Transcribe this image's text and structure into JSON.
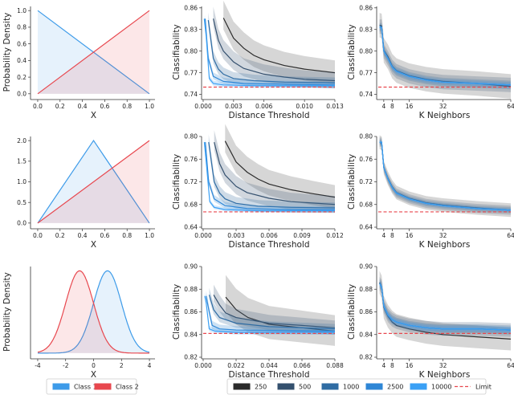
{
  "colors": {
    "class1": "#3d9be9",
    "class2": "#e8474e",
    "limit": "#e8474e",
    "s250": "#2b2b2b",
    "s500": "#34506e",
    "s1000": "#2f6ca3",
    "s2500": "#2e86d6",
    "s10000": "#3aa0f5"
  },
  "legends": {
    "classes": [
      {
        "label": "Class 1",
        "color": "#3d9be9"
      },
      {
        "label": "Class 2",
        "color": "#e8474e"
      }
    ],
    "samples": [
      {
        "label": "250",
        "color": "#2b2b2b"
      },
      {
        "label": "500",
        "color": "#34506e"
      },
      {
        "label": "1000",
        "color": "#2f6ca3"
      },
      {
        "label": "2500",
        "color": "#2e86d6"
      },
      {
        "label": "10000",
        "color": "#3aa0f5"
      },
      {
        "label": "Limit",
        "color": "#e8474e",
        "style": "dashed"
      }
    ]
  },
  "chart_data": [
    {
      "type": "line",
      "row": 1,
      "col": 1,
      "xlabel": "X",
      "ylabel": "Probability Density",
      "xlim": [
        -0.05,
        1.05
      ],
      "ylim": [
        -0.05,
        1.05
      ],
      "xticks": [
        "0.0",
        "0.2",
        "0.4",
        "0.6",
        "0.8",
        "1.0"
      ],
      "yticks": [
        "0.0",
        "0.2",
        "0.4",
        "0.6",
        "0.8",
        "1.0"
      ],
      "fill": true,
      "series": [
        {
          "name": "Class 1",
          "x": [
            0,
            1
          ],
          "y": [
            1,
            0
          ]
        },
        {
          "name": "Class 2",
          "x": [
            0,
            1
          ],
          "y": [
            0,
            1
          ]
        }
      ]
    },
    {
      "type": "line",
      "row": 1,
      "col": 2,
      "xlabel": "Distance Threshold",
      "ylabel": "Classifiability",
      "xlim": [
        0,
        0.013
      ],
      "ylim": [
        0.735,
        0.862
      ],
      "limit": 0.75,
      "xticks": [
        "0.000",
        "0.003",
        "0.006",
        "0.010",
        "0.013"
      ],
      "yticks": [
        "0.74",
        "0.77",
        "0.80",
        "0.83",
        "0.86"
      ],
      "series": [
        {
          "name": "250",
          "ci": 0.016,
          "x": [
            0.002,
            0.003,
            0.004,
            0.005,
            0.006,
            0.008,
            0.01,
            0.013
          ],
          "y": [
            0.846,
            0.818,
            0.804,
            0.794,
            0.788,
            0.78,
            0.775,
            0.77
          ]
        },
        {
          "name": "500",
          "ci": 0.011,
          "x": [
            0.001,
            0.0015,
            0.002,
            0.003,
            0.004,
            0.006,
            0.008,
            0.01,
            0.013
          ],
          "y": [
            0.845,
            0.815,
            0.8,
            0.785,
            0.776,
            0.768,
            0.764,
            0.761,
            0.759
          ]
        },
        {
          "name": "1000",
          "ci": 0.007,
          "x": [
            0.0005,
            0.001,
            0.0015,
            0.002,
            0.003,
            0.005,
            0.008,
            0.013
          ],
          "y": [
            0.843,
            0.79,
            0.775,
            0.768,
            0.762,
            0.759,
            0.757,
            0.756
          ]
        },
        {
          "name": "2500",
          "ci": 0.004,
          "x": [
            0.0002,
            0.0005,
            0.001,
            0.002,
            0.004,
            0.008,
            0.013
          ],
          "y": [
            0.845,
            0.79,
            0.765,
            0.758,
            0.755,
            0.754,
            0.753
          ]
        },
        {
          "name": "10000",
          "ci": 0.003,
          "x": [
            0.0001,
            0.0003,
            0.0006,
            0.001,
            0.002,
            0.005,
            0.013
          ],
          "y": [
            0.845,
            0.82,
            0.762,
            0.755,
            0.753,
            0.752,
            0.752
          ]
        }
      ]
    },
    {
      "type": "line",
      "row": 1,
      "col": 3,
      "xlabel": "K Neighbors",
      "ylabel": "Classifiability",
      "xlim": [
        1.4,
        64
      ],
      "ylim": [
        0.735,
        0.862
      ],
      "limit": 0.75,
      "xticks": [
        "4",
        "8",
        "16",
        "32",
        "64"
      ],
      "yticks": [
        "0.74",
        "0.77",
        "0.80",
        "0.83",
        "0.86"
      ],
      "series": [
        {
          "name": "250",
          "ci": 0.017,
          "x": [
            2,
            3,
            4,
            6,
            8,
            10,
            16,
            24,
            32,
            48,
            64
          ],
          "y": [
            0.836,
            0.835,
            0.801,
            0.792,
            0.779,
            0.773,
            0.766,
            0.761,
            0.758,
            0.755,
            0.751
          ]
        },
        {
          "name": "500",
          "ci": 0.01,
          "x": [
            2,
            3,
            4,
            6,
            8,
            10,
            16,
            24,
            32,
            48,
            64
          ],
          "y": [
            0.834,
            0.834,
            0.8,
            0.79,
            0.778,
            0.772,
            0.765,
            0.76,
            0.757,
            0.755,
            0.753
          ]
        },
        {
          "name": "1000",
          "ci": 0.006,
          "x": [
            2,
            3,
            4,
            6,
            8,
            10,
            16,
            24,
            32,
            48,
            64
          ],
          "y": [
            0.833,
            0.833,
            0.8,
            0.79,
            0.778,
            0.772,
            0.765,
            0.76,
            0.757,
            0.755,
            0.753
          ]
        },
        {
          "name": "2500",
          "ci": 0.004,
          "x": [
            2,
            3,
            4,
            6,
            8,
            10,
            16,
            24,
            32,
            48,
            64
          ],
          "y": [
            0.833,
            0.833,
            0.8,
            0.79,
            0.778,
            0.772,
            0.765,
            0.76,
            0.757,
            0.755,
            0.753
          ]
        },
        {
          "name": "10000",
          "ci": 0.002,
          "x": [
            2,
            3,
            4,
            6,
            8,
            10,
            16,
            24,
            32,
            48,
            64
          ],
          "y": [
            0.833,
            0.833,
            0.8,
            0.79,
            0.778,
            0.772,
            0.765,
            0.76,
            0.757,
            0.755,
            0.753
          ]
        }
      ]
    },
    {
      "type": "line",
      "row": 2,
      "col": 1,
      "xlabel": "X",
      "ylabel": "",
      "xlim": [
        -0.05,
        1.05
      ],
      "ylim": [
        -0.1,
        2.1
      ],
      "xticks": [
        "0.0",
        "0.2",
        "0.4",
        "0.6",
        "0.8",
        "1.0"
      ],
      "yticks": [
        "0.0",
        "0.5",
        "1.0",
        "1.5",
        "2.0"
      ],
      "fill": true,
      "series": [
        {
          "name": "Class 1",
          "x": [
            0,
            0.5,
            1
          ],
          "y": [
            0,
            2,
            0
          ]
        },
        {
          "name": "Class 2",
          "x": [
            0,
            1
          ],
          "y": [
            0,
            2
          ]
        }
      ]
    },
    {
      "type": "line",
      "row": 2,
      "col": 2,
      "xlabel": "Distance Threshold",
      "ylabel": "Classifiability",
      "xlim": [
        0,
        0.012
      ],
      "ylim": [
        0.64,
        0.8
      ],
      "limit": 0.667,
      "xticks": [
        "0.000",
        "0.003",
        "0.006",
        "0.009",
        "0.012"
      ],
      "yticks": [
        "0.64",
        "0.68",
        "0.72",
        "0.76",
        "0.80"
      ],
      "series": [
        {
          "name": "250",
          "ci": 0.02,
          "x": [
            0.002,
            0.003,
            0.004,
            0.005,
            0.006,
            0.008,
            0.01,
            0.012
          ],
          "y": [
            0.792,
            0.755,
            0.737,
            0.725,
            0.716,
            0.706,
            0.699,
            0.693
          ]
        },
        {
          "name": "500",
          "ci": 0.014,
          "x": [
            0.001,
            0.0015,
            0.002,
            0.003,
            0.004,
            0.006,
            0.008,
            0.012
          ],
          "y": [
            0.79,
            0.752,
            0.732,
            0.712,
            0.701,
            0.691,
            0.685,
            0.68
          ]
        },
        {
          "name": "1000",
          "ci": 0.009,
          "x": [
            0.0005,
            0.001,
            0.0015,
            0.002,
            0.003,
            0.005,
            0.008,
            0.012
          ],
          "y": [
            0.79,
            0.72,
            0.7,
            0.69,
            0.682,
            0.677,
            0.675,
            0.674
          ]
        },
        {
          "name": "2500",
          "ci": 0.005,
          "x": [
            0.0002,
            0.0005,
            0.001,
            0.002,
            0.004,
            0.008,
            0.012
          ],
          "y": [
            0.79,
            0.72,
            0.69,
            0.678,
            0.673,
            0.671,
            0.671
          ]
        },
        {
          "name": "10000",
          "ci": 0.003,
          "x": [
            0.0001,
            0.0003,
            0.0006,
            0.001,
            0.002,
            0.005,
            0.012
          ],
          "y": [
            0.79,
            0.75,
            0.685,
            0.675,
            0.671,
            0.669,
            0.669
          ]
        }
      ]
    },
    {
      "type": "line",
      "row": 2,
      "col": 3,
      "xlabel": "K Neighbors",
      "ylabel": "Classifiability",
      "xlim": [
        1.4,
        64
      ],
      "ylim": [
        0.64,
        0.8
      ],
      "limit": 0.667,
      "xticks": [
        "4",
        "8",
        "16",
        "32",
        "64"
      ],
      "yticks": [
        "0.64",
        "0.68",
        "0.72",
        "0.76",
        "0.80"
      ],
      "series": [
        {
          "name": "250",
          "ci": 0.012,
          "x": [
            2,
            3,
            4,
            6,
            8,
            10,
            16,
            24,
            32,
            48,
            64
          ],
          "y": [
            0.79,
            0.788,
            0.745,
            0.726,
            0.711,
            0.701,
            0.691,
            0.683,
            0.679,
            0.674,
            0.67
          ]
        },
        {
          "name": "500",
          "ci": 0.008,
          "x": [
            2,
            3,
            4,
            6,
            8,
            10,
            16,
            24,
            32,
            48,
            64
          ],
          "y": [
            0.79,
            0.79,
            0.745,
            0.725,
            0.71,
            0.7,
            0.69,
            0.682,
            0.678,
            0.673,
            0.67
          ]
        },
        {
          "name": "1000",
          "ci": 0.005,
          "x": [
            2,
            3,
            4,
            6,
            8,
            10,
            16,
            24,
            32,
            48,
            64
          ],
          "y": [
            0.79,
            0.79,
            0.745,
            0.725,
            0.71,
            0.7,
            0.69,
            0.682,
            0.678,
            0.673,
            0.67
          ]
        },
        {
          "name": "2500",
          "ci": 0.003,
          "x": [
            2,
            3,
            4,
            6,
            8,
            10,
            16,
            24,
            32,
            48,
            64
          ],
          "y": [
            0.79,
            0.79,
            0.745,
            0.725,
            0.71,
            0.7,
            0.69,
            0.682,
            0.678,
            0.673,
            0.67
          ]
        },
        {
          "name": "10000",
          "ci": 0.002,
          "x": [
            2,
            3,
            4,
            6,
            8,
            10,
            16,
            24,
            32,
            48,
            64
          ],
          "y": [
            0.79,
            0.79,
            0.745,
            0.725,
            0.71,
            0.7,
            0.69,
            0.682,
            0.678,
            0.673,
            0.67
          ]
        }
      ]
    },
    {
      "type": "line",
      "row": 3,
      "col": 1,
      "xlabel": "X",
      "ylabel": "Probability Density",
      "xlim": [
        -4.4,
        4.4
      ],
      "ylim": [
        -0.02,
        0.42
      ],
      "xticks": [
        "-4",
        "-2",
        "0",
        "2",
        "4"
      ],
      "yticks": [],
      "fill": true,
      "series": [
        {
          "name": "Class 1",
          "distribution": "normal",
          "mean": 1,
          "sd": 1
        },
        {
          "name": "Class 2",
          "distribution": "normal",
          "mean": -1,
          "sd": 1
        }
      ]
    },
    {
      "type": "line",
      "row": 3,
      "col": 2,
      "xlabel": "Distance Threshold",
      "ylabel": "Classifiability",
      "xlim": [
        0,
        0.088
      ],
      "ylim": [
        0.82,
        0.9
      ],
      "limit": 0.841,
      "xticks": [
        "0.000",
        "0.022",
        "0.044",
        "0.066",
        "0.088"
      ],
      "yticks": [
        "0.82",
        "0.84",
        "0.86",
        "0.88",
        "0.90"
      ],
      "series": [
        {
          "name": "250",
          "ci": 0.013,
          "x": [
            0.015,
            0.022,
            0.03,
            0.044,
            0.066,
            0.088
          ],
          "y": [
            0.873,
            0.862,
            0.855,
            0.849,
            0.846,
            0.843
          ]
        },
        {
          "name": "500",
          "ci": 0.006,
          "x": [
            0.007,
            0.011,
            0.015,
            0.022,
            0.044,
            0.066,
            0.088
          ],
          "y": [
            0.875,
            0.866,
            0.859,
            0.855,
            0.85,
            0.848,
            0.846
          ]
        },
        {
          "name": "1000",
          "ci": 0.004,
          "x": [
            0.004,
            0.007,
            0.011,
            0.022,
            0.044,
            0.088
          ],
          "y": [
            0.875,
            0.862,
            0.855,
            0.85,
            0.847,
            0.845
          ]
        },
        {
          "name": "2500",
          "ci": 0.003,
          "x": [
            0.002,
            0.004,
            0.006,
            0.011,
            0.022,
            0.088
          ],
          "y": [
            0.874,
            0.86,
            0.848,
            0.845,
            0.844,
            0.843
          ]
        },
        {
          "name": "10000",
          "ci": 0.002,
          "x": [
            0.001,
            0.002,
            0.004,
            0.008,
            0.022,
            0.088
          ],
          "y": [
            0.874,
            0.868,
            0.845,
            0.843,
            0.842,
            0.842
          ]
        }
      ]
    },
    {
      "type": "line",
      "row": 3,
      "col": 3,
      "xlabel": "K Neighbors",
      "ylabel": "Classifiability",
      "xlim": [
        1.4,
        64
      ],
      "ylim": [
        0.82,
        0.9
      ],
      "limit": 0.841,
      "xticks": [
        "4",
        "8",
        "16",
        "32",
        "64"
      ],
      "yticks": [
        "0.82",
        "0.84",
        "0.86",
        "0.88",
        "0.90"
      ],
      "series": [
        {
          "name": "250",
          "ci": 0.01,
          "x": [
            2,
            3,
            4,
            6,
            8,
            10,
            16,
            24,
            32,
            48,
            64
          ],
          "y": [
            0.886,
            0.882,
            0.864,
            0.856,
            0.851,
            0.848,
            0.845,
            0.842,
            0.84,
            0.838,
            0.836
          ]
        },
        {
          "name": "500",
          "ci": 0.006,
          "x": [
            2,
            3,
            4,
            6,
            8,
            10,
            16,
            24,
            32,
            48,
            64
          ],
          "y": [
            0.885,
            0.882,
            0.865,
            0.857,
            0.853,
            0.851,
            0.848,
            0.846,
            0.845,
            0.845,
            0.844
          ]
        },
        {
          "name": "1000",
          "ci": 0.004,
          "x": [
            2,
            3,
            4,
            6,
            8,
            10,
            16,
            24,
            32,
            48,
            64
          ],
          "y": [
            0.885,
            0.882,
            0.865,
            0.857,
            0.853,
            0.851,
            0.848,
            0.846,
            0.845,
            0.845,
            0.844
          ]
        },
        {
          "name": "2500",
          "ci": 0.003,
          "x": [
            2,
            3,
            4,
            6,
            8,
            10,
            16,
            24,
            32,
            48,
            64
          ],
          "y": [
            0.885,
            0.882,
            0.865,
            0.857,
            0.853,
            0.851,
            0.848,
            0.846,
            0.845,
            0.845,
            0.844
          ]
        },
        {
          "name": "10000",
          "ci": 0.002,
          "x": [
            2,
            3,
            4,
            6,
            8,
            10,
            16,
            24,
            32,
            48,
            64
          ],
          "y": [
            0.885,
            0.882,
            0.865,
            0.857,
            0.853,
            0.851,
            0.848,
            0.846,
            0.845,
            0.845,
            0.844
          ]
        }
      ]
    }
  ]
}
